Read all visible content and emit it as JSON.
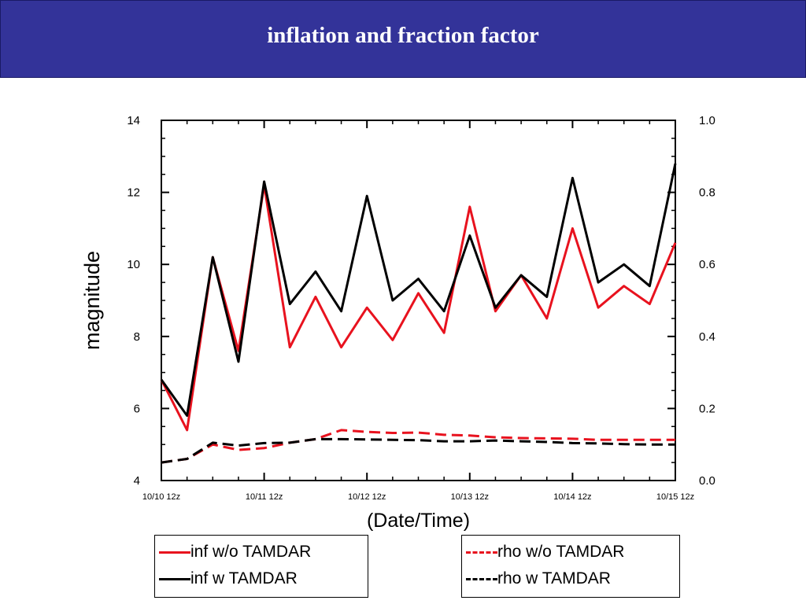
{
  "header": {
    "title": "inflation and fraction factor"
  },
  "colors": {
    "banner": "#333399",
    "red": "#e8121e",
    "black": "#000000"
  },
  "chart_data": {
    "type": "line",
    "title": "",
    "ylabel": "magnitude",
    "xlabel": "(Date/Time)",
    "ylim": [
      4,
      14
    ],
    "y2lim": [
      0.0,
      1.0
    ],
    "yticks": [
      "4",
      "6",
      "8",
      "10",
      "12",
      "14"
    ],
    "y2ticks": [
      "0.0",
      "0.2",
      "0.4",
      "0.6",
      "0.8",
      "1.0"
    ],
    "xticks": [
      "10/10 12z",
      "10/11 12z",
      "10/12 12z",
      "10/13 12z",
      "10/14 12z",
      "10/15 12z"
    ],
    "xlim": [
      0,
      20
    ],
    "x": [
      0,
      1,
      2,
      3,
      4,
      5,
      6,
      7,
      8,
      9,
      10,
      11,
      12,
      13,
      14,
      15,
      16,
      17,
      18,
      19,
      20
    ],
    "legend_placement": "bottom",
    "series": [
      {
        "name": "inf w/o TAMDAR",
        "axis": "left",
        "style": "solid",
        "color": "#e8121e",
        "values": [
          6.8,
          5.4,
          10.2,
          7.6,
          12.2,
          7.7,
          9.1,
          7.7,
          8.8,
          7.9,
          9.2,
          8.1,
          11.6,
          8.7,
          9.7,
          8.5,
          11.0,
          8.8,
          9.4,
          8.9,
          10.6
        ]
      },
      {
        "name": "inf w TAMDAR",
        "axis": "left",
        "style": "solid",
        "color": "#000000",
        "values": [
          6.8,
          5.8,
          10.2,
          7.3,
          12.3,
          8.9,
          9.8,
          8.7,
          11.9,
          9.0,
          9.6,
          8.7,
          10.8,
          8.8,
          9.7,
          9.1,
          12.4,
          9.5,
          10.0,
          9.4,
          12.8
        ]
      },
      {
        "name": "rho w/o TAMDAR",
        "axis": "right",
        "style": "dashed",
        "color": "#e8121e",
        "values": [
          0.05,
          0.06,
          0.1,
          0.085,
          0.09,
          0.105,
          0.115,
          0.14,
          0.135,
          0.132,
          0.133,
          0.127,
          0.125,
          0.12,
          0.118,
          0.117,
          0.116,
          0.113,
          0.113,
          0.113,
          0.113
        ]
      },
      {
        "name": "rho w TAMDAR",
        "axis": "right",
        "style": "dashed",
        "color": "#000000",
        "values": [
          0.05,
          0.06,
          0.105,
          0.097,
          0.104,
          0.105,
          0.115,
          0.115,
          0.114,
          0.113,
          0.112,
          0.109,
          0.109,
          0.111,
          0.109,
          0.107,
          0.104,
          0.103,
          0.101,
          0.1,
          0.1
        ]
      }
    ]
  },
  "legend": {
    "left": [
      {
        "label": "inf w/o TAMDAR",
        "color": "#e8121e",
        "style": "solid"
      },
      {
        "label": "inf w TAMDAR",
        "color": "#000000",
        "style": "solid"
      }
    ],
    "right": [
      {
        "label": "rho w/o TAMDAR",
        "color": "#e8121e",
        "style": "dashed"
      },
      {
        "label": "rho w TAMDAR",
        "color": "#000000",
        "style": "dashed"
      }
    ]
  }
}
